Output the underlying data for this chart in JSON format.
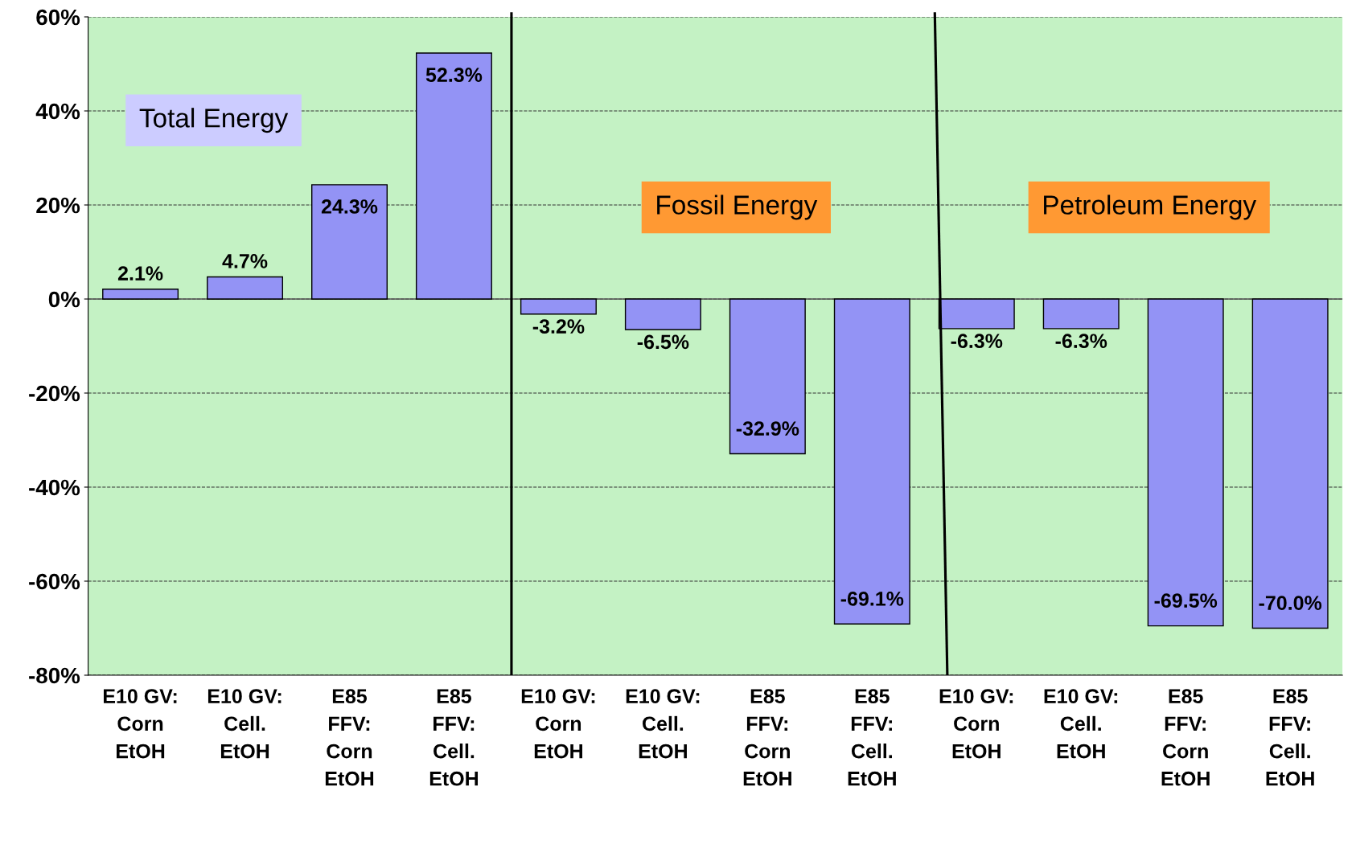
{
  "chart_data": {
    "type": "bar",
    "categories": [
      "E10 GV:\nCorn\nEtOH",
      "E10 GV:\nCell.\nEtOH",
      "E85\nFFV:\nCorn\nEtOH",
      "E85\nFFV:\nCell.\nEtOH",
      "E10 GV:\nCorn\nEtOH",
      "E10 GV:\nCell.\nEtOH",
      "E85\nFFV:\nCorn\nEtOH",
      "E85\nFFV:\nCell.\nEtOH",
      "E10 GV:\nCorn\nEtOH",
      "E10 GV:\nCell.\nEtOH",
      "E85\nFFV:\nCorn\nEtOH",
      "E85\nFFV:\nCell.\nEtOH"
    ],
    "values": [
      2.1,
      4.7,
      24.3,
      52.3,
      -3.2,
      -6.5,
      -32.9,
      -69.1,
      -6.3,
      -6.3,
      -69.5,
      -70.0
    ],
    "value_labels": [
      "2.1%",
      "4.7%",
      "24.3%",
      "52.3%",
      "-3.2%",
      "-6.5%",
      "-32.9%",
      "-69.1%",
      "-6.3%",
      "-6.3%",
      "-69.5%",
      "-70.0%"
    ],
    "color": "#9393f5",
    "ylim": [
      -80,
      60
    ],
    "yticks": [
      {
        "value": 60,
        "label": "60%"
      },
      {
        "value": 40,
        "label": "40%"
      },
      {
        "value": 20,
        "label": "20%"
      },
      {
        "value": 0,
        "label": "0%"
      },
      {
        "value": -20,
        "label": "-20%"
      },
      {
        "value": -40,
        "label": "-40%"
      },
      {
        "value": -60,
        "label": "-60%"
      },
      {
        "value": -80,
        "label": "-80%"
      }
    ],
    "grid": "y",
    "annotations": [
      "Total Energy",
      "Fossil Energy",
      "Petroleum Energy"
    ]
  }
}
